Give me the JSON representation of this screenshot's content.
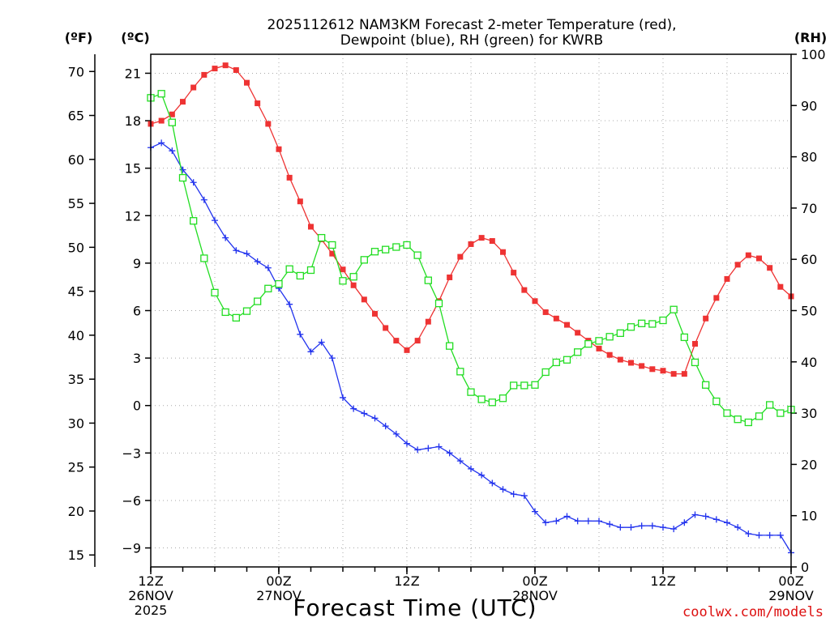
{
  "chart_data": {
    "type": "line",
    "title_line1": "2025112612 NAM3KM Forecast 2-meter Temperature (red),",
    "title_line2": "Dewpoint (blue), RH (green) for KWRB",
    "xlabel": "Forecast Time (UTC)",
    "credit": "coolwx.com/models",
    "left_axis_f_label": "(ºF)",
    "left_axis_c_label": "(ºC)",
    "right_axis_label": "(RH)",
    "x_hours_range": [
      0,
      60
    ],
    "x_ticks": [
      {
        "hour": 0,
        "line1": "12Z",
        "line2": "26NOV",
        "line3": "2025"
      },
      {
        "hour": 12,
        "line1": "00Z",
        "line2": "27NOV",
        "line3": ""
      },
      {
        "hour": 24,
        "line1": "12Z",
        "line2": "",
        "line3": ""
      },
      {
        "hour": 36,
        "line1": "00Z",
        "line2": "28NOV",
        "line3": ""
      },
      {
        "hour": 48,
        "line1": "12Z",
        "line2": "",
        "line3": ""
      },
      {
        "hour": 60,
        "line1": "00Z",
        "line2": "29NOV",
        "line3": ""
      }
    ],
    "ylim_c": [
      -10.2,
      22.2
    ],
    "ylim_f": [
      13.64,
      71.96
    ],
    "ylim_rh": [
      0,
      100
    ],
    "y_ticks_c": [
      "-9",
      "-6",
      "-3",
      "0",
      "3",
      "6",
      "9",
      "12",
      "15",
      "18",
      "21"
    ],
    "y_ticks_f": [
      "15",
      "20",
      "25",
      "30",
      "35",
      "40",
      "45",
      "50",
      "55",
      "60",
      "65",
      "70"
    ],
    "y_ticks_rh": [
      "0",
      "10",
      "20",
      "30",
      "40",
      "50",
      "60",
      "70",
      "80",
      "90",
      "100"
    ],
    "hours": [
      0,
      1,
      2,
      3,
      4,
      5,
      6,
      7,
      8,
      9,
      10,
      11,
      12,
      13,
      14,
      15,
      16,
      17,
      18,
      19,
      20,
      21,
      22,
      23,
      24,
      25,
      26,
      27,
      28,
      29,
      30,
      31,
      32,
      33,
      34,
      35,
      36,
      37,
      38,
      39,
      40,
      41,
      42,
      43,
      44,
      45,
      46,
      47,
      48,
      49,
      50,
      51,
      52,
      53,
      54,
      55,
      56,
      57,
      58,
      59,
      60
    ],
    "series": [
      {
        "name": "2-meter Temperature",
        "unit": "C",
        "color": "#ee3333",
        "marker": "filled-square",
        "values": [
          17.8,
          18.0,
          18.4,
          19.2,
          20.1,
          20.9,
          21.3,
          21.5,
          21.2,
          20.4,
          19.1,
          17.8,
          16.2,
          14.4,
          12.9,
          11.3,
          10.5,
          9.6,
          8.6,
          7.6,
          6.7,
          5.8,
          4.9,
          4.1,
          3.5,
          4.1,
          5.3,
          6.6,
          8.1,
          9.4,
          10.2,
          10.6,
          10.4,
          9.7,
          8.4,
          7.3,
          6.6,
          5.9,
          5.5,
          5.1,
          4.6,
          4.1,
          3.6,
          3.2,
          2.9,
          2.7,
          2.5,
          2.3,
          2.2,
          2.0,
          2.0,
          3.9,
          5.5,
          6.8,
          8.0,
          8.9,
          9.5,
          9.3,
          8.7,
          7.5,
          6.9
        ]
      },
      {
        "name": "Dewpoint",
        "unit": "C",
        "color": "#2233ee",
        "marker": "plus",
        "values": [
          16.3,
          16.6,
          16.1,
          14.9,
          14.1,
          13.0,
          11.7,
          10.6,
          9.8,
          9.6,
          9.1,
          8.7,
          7.4,
          6.4,
          4.5,
          3.4,
          4.0,
          3.0,
          0.5,
          -0.2,
          -0.5,
          -0.8,
          -1.3,
          -1.8,
          -2.4,
          -2.8,
          -2.7,
          -2.6,
          -3.0,
          -3.5,
          -4.0,
          -4.4,
          -4.9,
          -5.3,
          -5.6,
          -5.7,
          -6.7,
          -7.4,
          -7.3,
          -7.0,
          -7.3,
          -7.3,
          -7.3,
          -7.5,
          -7.7,
          -7.7,
          -7.6,
          -7.6,
          -7.7,
          -7.8,
          -7.4,
          -6.9,
          -7.0,
          -7.2,
          -7.4,
          -7.7,
          -8.1,
          -8.2,
          -8.2,
          -8.2,
          -9.3
        ]
      },
      {
        "name": "RH",
        "unit": "%",
        "color": "#22dd22",
        "marker": "open-square",
        "values": [
          91.5,
          92.3,
          86.7,
          75.9,
          67.5,
          60.2,
          53.5,
          49.7,
          48.6,
          49.9,
          51.8,
          54.3,
          55.2,
          58.1,
          56.8,
          57.9,
          64.2,
          62.8,
          55.8,
          56.6,
          59.9,
          61.5,
          61.9,
          62.4,
          62.8,
          60.8,
          55.9,
          51.4,
          43.1,
          38.1,
          34.1,
          32.7,
          32.1,
          32.9,
          35.4,
          35.4,
          35.5,
          38.0,
          39.9,
          40.4,
          41.9,
          43.5,
          44.1,
          44.9,
          45.6,
          46.8,
          47.5,
          47.4,
          48.1,
          50.2,
          44.8,
          39.9,
          35.5,
          32.3,
          30.0,
          28.8,
          28.2,
          29.4,
          31.6,
          30.0,
          30.7
        ]
      }
    ]
  }
}
